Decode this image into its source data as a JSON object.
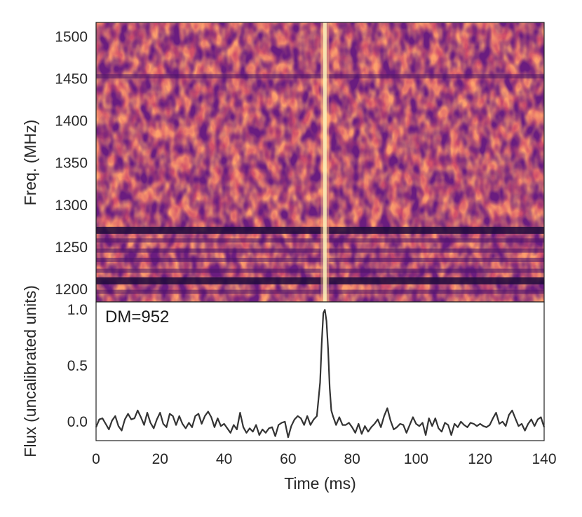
{
  "chart_data": [
    {
      "type": "heatmap",
      "panel": "dynamic-spectrum",
      "ylabel": "Freq. (MHz)",
      "ylim": [
        1185,
        1517
      ],
      "xlim": [
        0,
        140
      ],
      "yticks": [
        1200,
        1250,
        1300,
        1350,
        1400,
        1450,
        1500
      ],
      "ytick_labels": [
        "1200",
        "1250",
        "1300",
        "1350",
        "1400",
        "1450",
        "1500"
      ],
      "colormap": "magma",
      "burst": {
        "time_ms": 71.5,
        "freq_range_mhz": [
          1185,
          1517
        ]
      },
      "dark_bands_mhz": [
        1453,
        1270,
        1258,
        1246,
        1235,
        1222,
        1210,
        1197
      ]
    },
    {
      "type": "line",
      "panel": "pulse-profile",
      "annotation": "DM=952",
      "xlabel": "Time (ms)",
      "ylabel": "Flux (uncalibrated units)",
      "xlim": [
        0,
        140
      ],
      "ylim": [
        -0.17,
        1.07
      ],
      "xticks": [
        0,
        20,
        40,
        60,
        80,
        100,
        120,
        140
      ],
      "xtick_labels": [
        "0",
        "20",
        "40",
        "60",
        "80",
        "100",
        "120",
        "140"
      ],
      "yticks": [
        0.0,
        0.5,
        1.0
      ],
      "ytick_labels": [
        "0.0",
        "0.5",
        "1.0"
      ],
      "line_color": "#333333",
      "series": [
        {
          "x": [
            0,
            1,
            2,
            3,
            4,
            5,
            6,
            7,
            8,
            9,
            10,
            11,
            12,
            13,
            14,
            15,
            16,
            17,
            18,
            19,
            20,
            21,
            22,
            23,
            24,
            25,
            26,
            27,
            28,
            29,
            30,
            31,
            32,
            33,
            34,
            35,
            36,
            37,
            38,
            39,
            40,
            41,
            42,
            43,
            44,
            45,
            46,
            47,
            48,
            49,
            50,
            51,
            52,
            53,
            54,
            55,
            56,
            57,
            58,
            59,
            60,
            61,
            62,
            63,
            64,
            65,
            66,
            67,
            68,
            69,
            70,
            70.5,
            71,
            71.5,
            72,
            72.5,
            73,
            73.5,
            74,
            75,
            76,
            77,
            78,
            79,
            80,
            81,
            82,
            83,
            84,
            85,
            86,
            87,
            88,
            89,
            90,
            91,
            92,
            93,
            94,
            95,
            96,
            97,
            98,
            99,
            100,
            101,
            102,
            103,
            104,
            105,
            106,
            107,
            108,
            109,
            110,
            111,
            112,
            113,
            114,
            115,
            116,
            117,
            118,
            119,
            120,
            121,
            122,
            123,
            124,
            125,
            126,
            127,
            128,
            129,
            130,
            131,
            132,
            133,
            134,
            135,
            136,
            137,
            138,
            139,
            140
          ],
          "y": [
            -0.05,
            0.02,
            0.03,
            -0.02,
            -0.07,
            0.01,
            0.05,
            -0.04,
            -0.08,
            0.02,
            0.07,
            0.02,
            0.03,
            0.1,
            0.04,
            -0.03,
            0.08,
            -0.01,
            -0.06,
            0.02,
            0.08,
            -0.02,
            -0.05,
            0.07,
            0.05,
            -0.03,
            0.05,
            -0.02,
            -0.06,
            -0.01,
            -0.05,
            0.05,
            0.07,
            -0.02,
            0.05,
            0.09,
            0.04,
            -0.05,
            0.03,
            -0.04,
            -0.02,
            -0.06,
            -0.1,
            -0.03,
            -0.07,
            0.08,
            -0.05,
            -0.1,
            -0.06,
            -0.09,
            -0.03,
            -0.12,
            -0.07,
            -0.1,
            -0.06,
            -0.05,
            -0.13,
            -0.03,
            -0.01,
            0.0,
            -0.14,
            -0.04,
            0.02,
            0.05,
            0.03,
            -0.03,
            0.05,
            -0.03,
            0.02,
            0.05,
            0.35,
            0.7,
            0.97,
            1.0,
            0.9,
            0.65,
            0.3,
            0.1,
            0.05,
            -0.03,
            0.04,
            -0.03,
            -0.03,
            -0.01,
            -0.05,
            -0.1,
            -0.02,
            -0.11,
            -0.04,
            -0.09,
            -0.05,
            -0.02,
            0.02,
            -0.05,
            0.05,
            0.12,
            0.01,
            -0.07,
            -0.05,
            -0.02,
            -0.03,
            -0.1,
            -0.03,
            0.04,
            -0.02,
            -0.04,
            -0.01,
            -0.12,
            0.03,
            -0.04,
            0.03,
            -0.06,
            -0.09,
            -0.01,
            -0.03,
            -0.12,
            -0.02,
            -0.05,
            0.0,
            -0.03,
            -0.05,
            -0.01,
            -0.02,
            -0.04,
            -0.02,
            -0.04,
            -0.05,
            -0.03,
            0.03,
            0.08,
            -0.02,
            0.0,
            -0.04,
            0.06,
            0.1,
            0.03,
            -0.04,
            -0.02,
            -0.08,
            -0.02,
            0.02,
            -0.04,
            0.02,
            0.04,
            -0.05
          ]
        }
      ]
    }
  ]
}
